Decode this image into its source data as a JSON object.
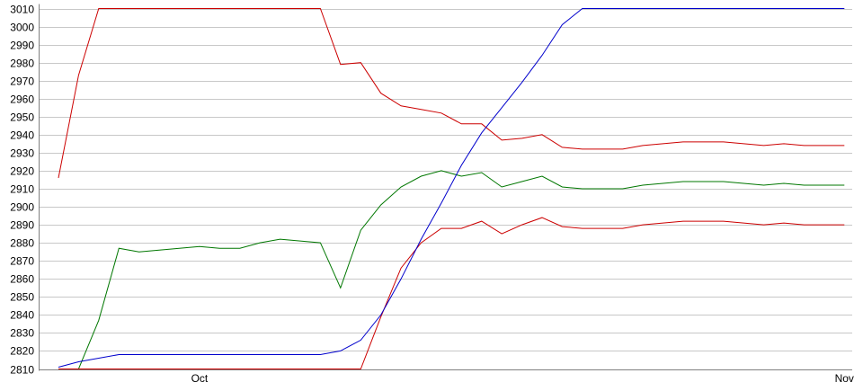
{
  "chart_data": {
    "type": "line",
    "title": "",
    "xlabel": "",
    "ylabel": "",
    "ylim": [
      2810,
      3010
    ],
    "y_ticks": [
      2810,
      2820,
      2830,
      2840,
      2850,
      2860,
      2870,
      2880,
      2890,
      2900,
      2910,
      2920,
      2930,
      2940,
      2950,
      2960,
      2970,
      2980,
      2990,
      3000,
      3010
    ],
    "x_ticks": [
      {
        "label": "Oct",
        "x": 7
      },
      {
        "label": "Nov",
        "x": 39
      }
    ],
    "xlim": [
      0,
      39.3
    ],
    "grid": "horizontal",
    "legend": "none",
    "series": [
      {
        "color": "#cc0000",
        "x": [
          0,
          1,
          2,
          3,
          4,
          5,
          6,
          7,
          8,
          9,
          10,
          11,
          12,
          13,
          14,
          15,
          16,
          17,
          18,
          19,
          20,
          21,
          22,
          23,
          24,
          25,
          26,
          27,
          28,
          29,
          30,
          31,
          32,
          33,
          34,
          35,
          36,
          37,
          38,
          39
        ],
        "values": [
          2916,
          2973,
          3010,
          3010,
          3010,
          3010,
          3010,
          3010,
          3010,
          3010,
          3010,
          3010,
          3010,
          3010,
          2979,
          2980,
          2963,
          2956,
          2954,
          2952,
          2946,
          2946,
          2937,
          2938,
          2940,
          2933,
          2932,
          2932,
          2932,
          2934,
          2935,
          2936,
          2936,
          2936,
          2935,
          2934,
          2935,
          2934,
          2934,
          2934
        ]
      },
      {
        "color": "#007700",
        "x": [
          0,
          1,
          2,
          3,
          4,
          5,
          6,
          7,
          8,
          9,
          10,
          11,
          12,
          13,
          14,
          15,
          16,
          17,
          18,
          19,
          20,
          21,
          22,
          23,
          24,
          25,
          26,
          27,
          28,
          29,
          30,
          31,
          32,
          33,
          34,
          35,
          36,
          37,
          38,
          39
        ],
        "values": [
          2805,
          2810,
          2837,
          2877,
          2875,
          2876,
          2877,
          2878,
          2877,
          2877,
          2880,
          2882,
          2881,
          2880,
          2855,
          2887,
          2901,
          2911,
          2917,
          2920,
          2917,
          2919,
          2911,
          2914,
          2917,
          2911,
          2910,
          2910,
          2910,
          2912,
          2913,
          2914,
          2914,
          2914,
          2913,
          2912,
          2913,
          2912,
          2912,
          2912
        ]
      },
      {
        "color": "#cc0000",
        "x": [
          0,
          1,
          2,
          3,
          4,
          5,
          6,
          7,
          8,
          9,
          10,
          11,
          12,
          13,
          14,
          15,
          16,
          17,
          18,
          19,
          20,
          21,
          22,
          23,
          24,
          25,
          26,
          27,
          28,
          29,
          30,
          31,
          32,
          33,
          34,
          35,
          36,
          37,
          38,
          39
        ],
        "values": [
          2810,
          2810,
          2810,
          2810,
          2810,
          2810,
          2810,
          2810,
          2810,
          2810,
          2810,
          2810,
          2810,
          2810,
          2810,
          2810,
          2839,
          2866,
          2880,
          2888,
          2888,
          2892,
          2885,
          2890,
          2894,
          2889,
          2888,
          2888,
          2888,
          2890,
          2891,
          2892,
          2892,
          2892,
          2891,
          2890,
          2891,
          2890,
          2890,
          2890
        ]
      },
      {
        "color": "#0000cc",
        "x": [
          0,
          1,
          2,
          3,
          4,
          5,
          6,
          7,
          8,
          9,
          10,
          11,
          12,
          13,
          14,
          15,
          16,
          17,
          18,
          19,
          20,
          21,
          22,
          23,
          24,
          25,
          26,
          27,
          28,
          29,
          30,
          31,
          32,
          33,
          34,
          35,
          36,
          37,
          38,
          39
        ],
        "values": [
          2811,
          2814,
          2816,
          2818,
          2818,
          2818,
          2818,
          2818,
          2818,
          2818,
          2818,
          2818,
          2818,
          2818,
          2820,
          2826,
          2840,
          2860,
          2882,
          2902,
          2923,
          2941,
          2955,
          2969,
          2984,
          3001,
          3010,
          3010,
          3010,
          3010,
          3010,
          3010,
          3010,
          3010,
          3010,
          3010,
          3010,
          3010,
          3010,
          3010
        ]
      }
    ]
  }
}
